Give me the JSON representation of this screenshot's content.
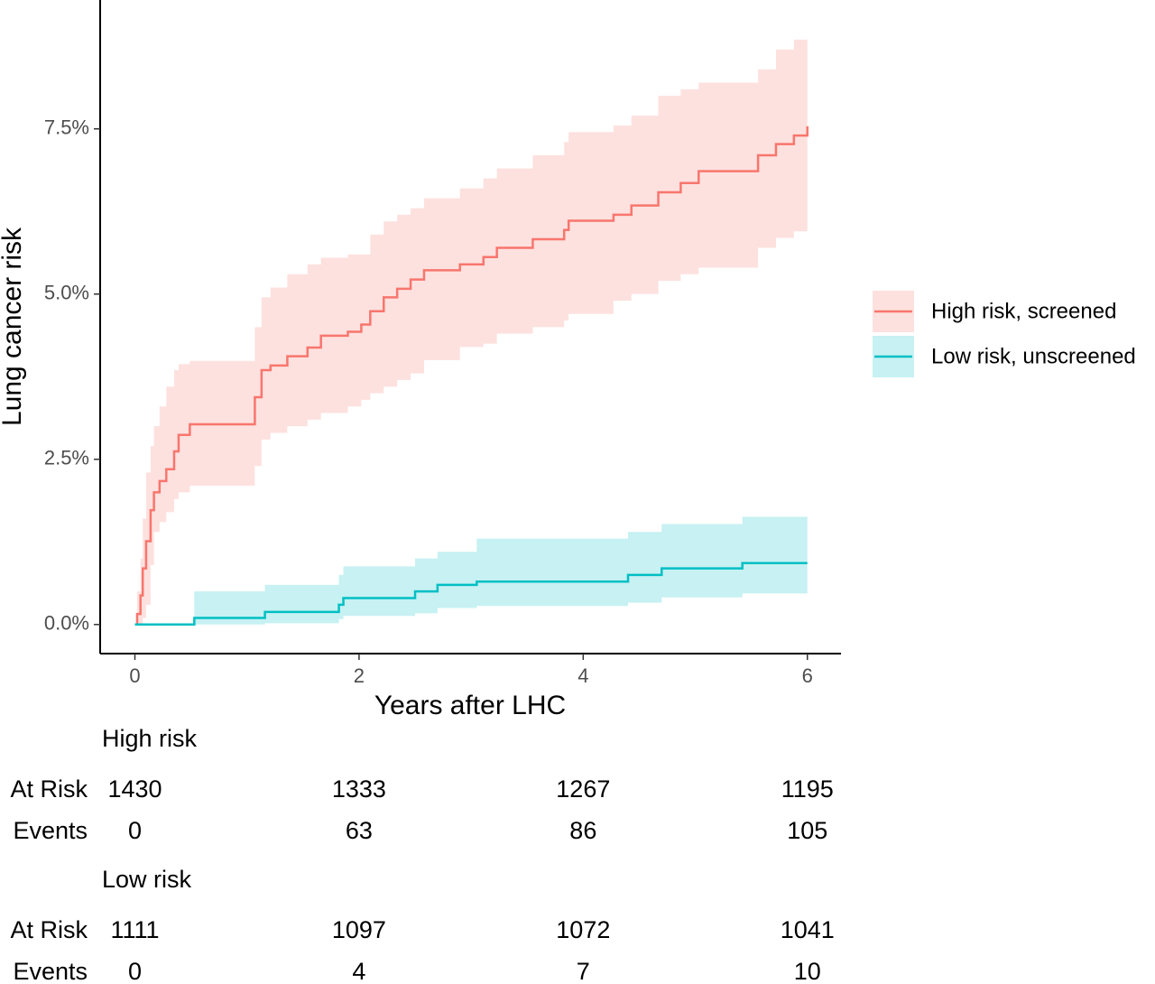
{
  "chart_data": {
    "type": "line",
    "step": true,
    "xlabel": "Years after LHC",
    "ylabel": "Lung cancer risk",
    "xlim": [
      -0.31,
      6.3
    ],
    "ylim": [
      -0.44,
      9.45
    ],
    "xticks": [
      0,
      2,
      4,
      6
    ],
    "yticks": [
      {
        "value": 0,
        "label": "0.0%"
      },
      {
        "value": 2.5,
        "label": "2.5%"
      },
      {
        "value": 5,
        "label": "5.0%"
      },
      {
        "value": 7.5,
        "label": "7.5%"
      }
    ],
    "legend": "right",
    "series": [
      {
        "name": "High risk, screened",
        "color": "#F8766D",
        "x": [
          0,
          0.02,
          0.05,
          0.07,
          0.1,
          0.14,
          0.17,
          0.22,
          0.28,
          0.35,
          0.39,
          0.49,
          1.02,
          1.07,
          1.13,
          1.21,
          1.36,
          1.54,
          1.66,
          1.9,
          2.02,
          2.1,
          2.22,
          2.34,
          2.46,
          2.58,
          2.9,
          3.11,
          3.23,
          3.55,
          3.83,
          3.87,
          4.27,
          4.43,
          4.67,
          4.87,
          5.03,
          5.44,
          5.56,
          5.72,
          5.88,
          6.0
        ],
        "values": [
          0,
          0.16,
          0.44,
          0.85,
          1.26,
          1.73,
          2.0,
          2.17,
          2.35,
          2.62,
          2.87,
          3.03,
          3.03,
          3.44,
          3.85,
          3.92,
          4.06,
          4.19,
          4.37,
          4.43,
          4.54,
          4.74,
          4.95,
          5.08,
          5.22,
          5.36,
          5.45,
          5.56,
          5.7,
          5.83,
          5.97,
          6.11,
          6.2,
          6.34,
          6.54,
          6.68,
          6.86,
          6.86,
          7.1,
          7.27,
          7.4,
          7.54
        ],
        "upper": [
          0,
          0.5,
          1.0,
          1.6,
          2.3,
          2.7,
          3.0,
          3.3,
          3.6,
          3.85,
          3.94,
          3.99,
          3.99,
          4.5,
          4.95,
          5.1,
          5.3,
          5.45,
          5.55,
          5.6,
          5.6,
          5.9,
          6.1,
          6.2,
          6.3,
          6.45,
          6.6,
          6.75,
          6.9,
          7.1,
          7.3,
          7.45,
          7.55,
          7.7,
          8.0,
          8.1,
          8.2,
          8.2,
          8.4,
          8.7,
          8.85,
          8.9
        ],
        "lower": [
          0,
          0,
          0,
          0.1,
          0.3,
          0.9,
          1.4,
          1.55,
          1.7,
          1.9,
          2.0,
          2.1,
          2.1,
          2.4,
          2.8,
          2.9,
          3.0,
          3.1,
          3.2,
          3.3,
          3.4,
          3.5,
          3.6,
          3.7,
          3.8,
          4.0,
          4.2,
          4.25,
          4.4,
          4.5,
          4.6,
          4.7,
          4.9,
          5.0,
          5.2,
          5.3,
          5.4,
          5.4,
          5.7,
          5.85,
          5.95,
          6.2
        ]
      },
      {
        "name": "Low risk, unscreened",
        "color": "#00BFC4",
        "x": [
          0,
          0.53,
          1.16,
          1.82,
          1.86,
          2.5,
          2.7,
          3.05,
          4.4,
          4.7,
          5.42,
          6.0
        ],
        "values": [
          0,
          0.1,
          0.19,
          0.3,
          0.4,
          0.5,
          0.6,
          0.65,
          0.75,
          0.85,
          0.93,
          0.93
        ],
        "upper": [
          0,
          0.5,
          0.6,
          0.75,
          0.88,
          1.0,
          1.1,
          1.3,
          1.4,
          1.52,
          1.63,
          1.63
        ],
        "lower": [
          0,
          0,
          0.02,
          0.08,
          0.13,
          0.17,
          0.25,
          0.28,
          0.33,
          0.41,
          0.47,
          0.47
        ]
      }
    ]
  },
  "risk_table": {
    "x": [
      0,
      2,
      4,
      6
    ],
    "groups": [
      {
        "name": "High risk",
        "rows": [
          {
            "label": "At Risk",
            "values": [
              1430,
              1333,
              1267,
              1195
            ]
          },
          {
            "label": "Events",
            "values": [
              0,
              63,
              86,
              105
            ]
          }
        ]
      },
      {
        "name": "Low risk",
        "rows": [
          {
            "label": "At Risk",
            "values": [
              1111,
              1097,
              1072,
              1041
            ]
          },
          {
            "label": "Events",
            "values": [
              0,
              4,
              7,
              10
            ]
          }
        ]
      }
    ]
  }
}
